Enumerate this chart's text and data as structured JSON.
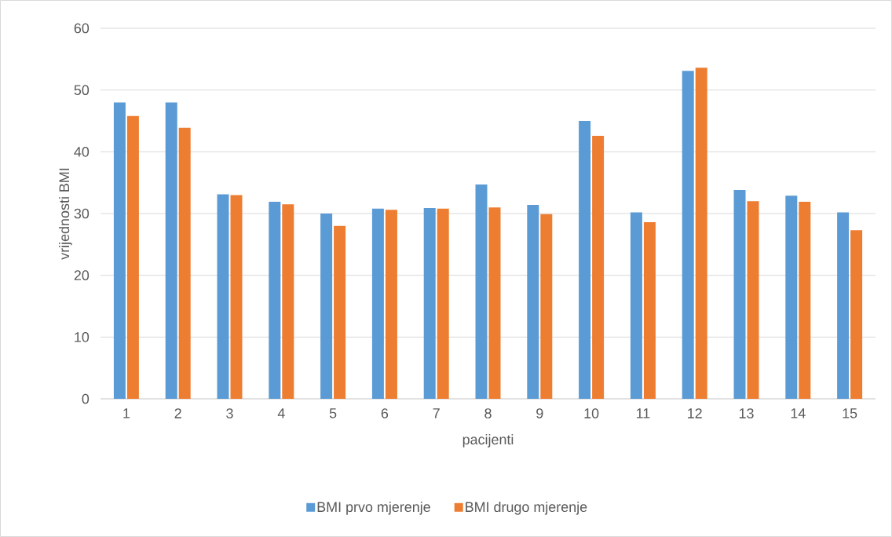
{
  "chart_data": {
    "type": "bar",
    "xlabel": "pacijenti",
    "ylabel": "vrijednosti BMI",
    "categories": [
      "1",
      "2",
      "3",
      "4",
      "5",
      "6",
      "7",
      "8",
      "9",
      "10",
      "11",
      "12",
      "13",
      "14",
      "15"
    ],
    "series": [
      {
        "name": "BMI prvo mjerenje",
        "color": "#5b9bd5",
        "values": [
          48.0,
          48.0,
          33.1,
          31.9,
          30.0,
          30.8,
          30.9,
          34.7,
          31.4,
          45.0,
          30.2,
          53.1,
          33.8,
          32.9,
          30.2
        ]
      },
      {
        "name": "BMI drugo mjerenje",
        "color": "#ed7d31",
        "values": [
          45.8,
          43.9,
          33.0,
          31.5,
          28.0,
          30.6,
          30.8,
          31.0,
          29.9,
          42.6,
          28.6,
          53.6,
          32.0,
          31.9,
          27.3
        ]
      }
    ],
    "ylim": [
      0,
      60
    ],
    "yticks": [
      0,
      10,
      20,
      30,
      40,
      50,
      60
    ],
    "grid": "y",
    "legend": "bottom"
  }
}
